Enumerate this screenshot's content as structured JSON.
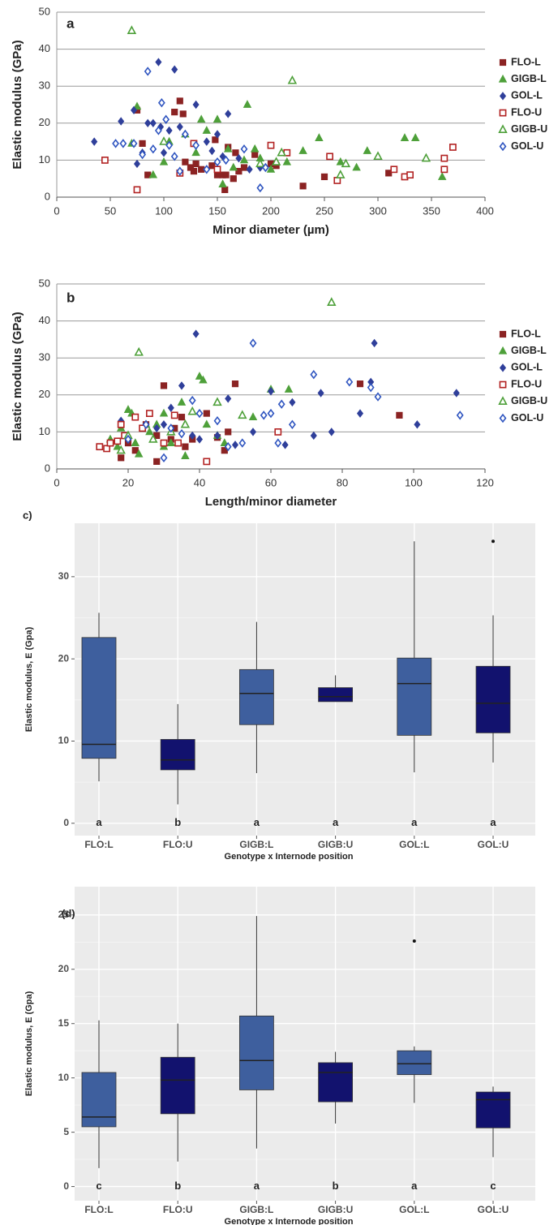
{
  "chart_data": [
    {
      "type": "scatter",
      "label": "a",
      "xlabel": "Minor diameter (µm)",
      "ylabel": "Elastic modulus (GPa)",
      "xlim": [
        0,
        400
      ],
      "xticks": [
        0,
        50,
        100,
        150,
        200,
        250,
        300,
        350,
        400
      ],
      "ylim": [
        0,
        50
      ],
      "yticks": [
        0,
        10,
        20,
        30,
        40,
        50
      ],
      "grid": true,
      "legend": "right",
      "series": [
        {
          "name": "FLO-L",
          "color": "#8b2323",
          "marker": "square",
          "filled": true,
          "x": [
            75,
            80,
            85,
            110,
            115,
            118,
            120,
            125,
            128,
            130,
            135,
            145,
            148,
            150,
            155,
            157,
            158,
            160,
            165,
            167,
            170,
            175,
            185,
            200,
            205,
            230,
            250,
            310
          ],
          "y": [
            23.5,
            14.5,
            6,
            23,
            26,
            22.5,
            9.5,
            8,
            7,
            9,
            7.5,
            8.5,
            15.5,
            6,
            6,
            2,
            6,
            13.5,
            5,
            12,
            7,
            8,
            11.5,
            9,
            8.5,
            3,
            5.5,
            6.5
          ]
        },
        {
          "name": "GIGB-L",
          "color": "#4ea03a",
          "marker": "triangle",
          "filled": true,
          "x": [
            70,
            75,
            90,
            100,
            105,
            120,
            130,
            135,
            140,
            150,
            155,
            160,
            165,
            175,
            178,
            185,
            190,
            200,
            210,
            215,
            230,
            245,
            265,
            280,
            290,
            300,
            325,
            335,
            360
          ],
          "y": [
            14.5,
            24.5,
            6,
            9.5,
            15,
            17,
            12,
            21,
            18,
            21,
            3.5,
            13,
            8,
            10,
            25,
            13,
            10.5,
            7.5,
            12,
            9.5,
            12.5,
            16,
            9.5,
            8,
            12.5,
            11,
            16,
            16,
            5.5
          ]
        },
        {
          "name": "GOL-L",
          "color": "#2f3f9a",
          "marker": "diamond",
          "filled": true,
          "x": [
            35,
            60,
            72,
            75,
            80,
            85,
            90,
            95,
            97,
            100,
            105,
            110,
            115,
            130,
            140,
            145,
            150,
            155,
            160,
            170,
            180,
            190
          ],
          "y": [
            15,
            20.5,
            23.5,
            9,
            12,
            20,
            20,
            36.5,
            19,
            12,
            18,
            34.5,
            19,
            25,
            15,
            12.5,
            17,
            11,
            22.5,
            10.5,
            7.5,
            8
          ]
        },
        {
          "name": "FLO-U",
          "color": "#b22222",
          "marker": "square",
          "filled": false,
          "x": [
            45,
            75,
            115,
            128,
            150,
            200,
            215,
            255,
            262,
            315,
            325,
            330,
            362,
            362,
            370
          ],
          "y": [
            10,
            2,
            6.5,
            14.5,
            7.5,
            14,
            12,
            11,
            4.5,
            7.5,
            5.5,
            6,
            10.5,
            7.5,
            13.5
          ]
        },
        {
          "name": "GIGB-U",
          "color": "#4ea03a",
          "marker": "triangle",
          "filled": false,
          "x": [
            70,
            100,
            205,
            210,
            220,
            265,
            270,
            300,
            345,
            190
          ],
          "y": [
            45,
            15,
            9.5,
            12,
            31.5,
            6,
            9,
            11,
            10.5,
            9
          ]
        },
        {
          "name": "GOL-U",
          "color": "#2f55c0",
          "marker": "diamond",
          "filled": false,
          "x": [
            55,
            62,
            72,
            80,
            85,
            90,
            95,
            98,
            102,
            105,
            110,
            115,
            120,
            130,
            140,
            150,
            158,
            175,
            190,
            195
          ],
          "y": [
            14.5,
            14.5,
            14.5,
            11.5,
            34,
            13,
            18,
            25.5,
            21,
            14,
            11,
            7,
            17,
            14,
            7.5,
            9.5,
            10,
            13,
            2.5,
            8
          ]
        }
      ]
    },
    {
      "type": "scatter",
      "label": "b",
      "xlabel": "Length/minor diameter",
      "ylabel": "Elastic modulus (GPa)",
      "xlim": [
        0,
        120
      ],
      "xticks": [
        0,
        20,
        40,
        60,
        80,
        100,
        120
      ],
      "ylim": [
        0,
        50
      ],
      "yticks": [
        0,
        10,
        20,
        30,
        40,
        50
      ],
      "grid": true,
      "legend": "right",
      "series": [
        {
          "name": "FLO-L",
          "color": "#8b2323",
          "marker": "square",
          "filled": true,
          "x": [
            18,
            20,
            22,
            25,
            28,
            30,
            32,
            35,
            36,
            38,
            42,
            45,
            47,
            48,
            50,
            85,
            96,
            28,
            33
          ],
          "y": [
            3,
            7,
            5,
            12,
            2,
            22.5,
            8,
            14,
            6,
            8,
            15,
            8.5,
            5,
            10,
            23,
            23,
            14.5,
            9,
            11
          ]
        },
        {
          "name": "GIGB-L",
          "color": "#4ea03a",
          "marker": "triangle",
          "filled": true,
          "x": [
            15,
            17,
            18,
            20,
            21,
            22,
            23,
            25,
            28,
            30,
            32,
            35,
            36,
            40,
            41,
            42,
            45,
            47,
            55,
            60,
            65,
            30,
            26
          ],
          "y": [
            8,
            6,
            11,
            16,
            15,
            7,
            4,
            12,
            12,
            15,
            7,
            18,
            3.5,
            25,
            24,
            12,
            9,
            7,
            14,
            21.5,
            21.5,
            6,
            10
          ]
        },
        {
          "name": "GOL-L",
          "color": "#2f3f9a",
          "marker": "diamond",
          "filled": true,
          "x": [
            18,
            28,
            30,
            32,
            35,
            38,
            39,
            40,
            45,
            48,
            50,
            55,
            60,
            64,
            66,
            72,
            74,
            77,
            85,
            88,
            89,
            101,
            112
          ],
          "y": [
            13,
            11,
            12,
            16.5,
            22.5,
            9,
            36.5,
            8,
            9,
            19,
            6.5,
            10,
            21,
            6.5,
            18,
            9,
            20.5,
            10,
            15,
            23.5,
            34,
            12,
            20.5
          ]
        },
        {
          "name": "FLO-U",
          "color": "#b22222",
          "marker": "square",
          "filled": false,
          "x": [
            12,
            14,
            15,
            17,
            18,
            19,
            22,
            24,
            26,
            30,
            33,
            34,
            42,
            62
          ],
          "y": [
            6,
            5.5,
            7,
            7.5,
            12,
            9,
            14,
            11,
            15,
            7,
            14.5,
            7,
            2,
            10
          ]
        },
        {
          "name": "GIGB-U",
          "color": "#4ea03a",
          "marker": "triangle",
          "filled": false,
          "x": [
            18,
            20,
            23,
            27,
            32,
            38,
            45,
            52,
            77,
            36
          ],
          "y": [
            5,
            9,
            31.5,
            8,
            10,
            15.5,
            18,
            14.5,
            45,
            12
          ]
        },
        {
          "name": "GOL-U",
          "color": "#2f55c0",
          "marker": "diamond",
          "filled": false,
          "x": [
            20,
            25,
            30,
            32,
            35,
            38,
            40,
            45,
            48,
            52,
            55,
            58,
            60,
            62,
            63,
            66,
            72,
            82,
            88,
            90,
            113
          ],
          "y": [
            8,
            12,
            3,
            11,
            9.5,
            18.5,
            15,
            13,
            6,
            7,
            34,
            14.5,
            15,
            7,
            17.5,
            12,
            25.5,
            23.5,
            22,
            19.5,
            14.5
          ]
        }
      ]
    },
    {
      "type": "box",
      "label": "c)",
      "xlabel": "Genotype x Internode position",
      "ylabel": "Elastic modulus, E (Gpa)",
      "ylim": [
        -1.5,
        36.5
      ],
      "yticks": [
        0,
        10,
        20,
        30
      ],
      "grid": true,
      "categories": [
        "FLO:L",
        "FLO:U",
        "GIGB:L",
        "GIGB:U",
        "GOL:L",
        "GOL:U"
      ],
      "colors": [
        "#3e5f9e",
        "#12126e",
        "#3e5f9e",
        "#12126e",
        "#3e5f9e",
        "#12126e"
      ],
      "letters": [
        "a",
        "b",
        "a",
        "a",
        "a",
        "a"
      ],
      "boxes": [
        {
          "whisker_low": 5.1,
          "q1": 7.9,
          "median": 9.6,
          "q3": 22.6,
          "whisker_high": 25.6,
          "outliers": []
        },
        {
          "whisker_low": 2.3,
          "q1": 6.5,
          "median": 7.7,
          "q3": 10.2,
          "whisker_high": 14.5,
          "outliers": []
        },
        {
          "whisker_low": 6.1,
          "q1": 12.0,
          "median": 15.8,
          "q3": 18.7,
          "whisker_high": 24.5,
          "outliers": []
        },
        {
          "whisker_low": 14.8,
          "q1": 14.8,
          "median": 15.4,
          "q3": 16.5,
          "whisker_high": 18.0,
          "outliers": []
        },
        {
          "whisker_low": 6.2,
          "q1": 10.7,
          "median": 17.0,
          "q3": 20.1,
          "whisker_high": 34.3,
          "outliers": []
        },
        {
          "whisker_low": 7.4,
          "q1": 11.0,
          "median": 14.6,
          "q3": 19.1,
          "whisker_high": 25.3,
          "outliers": [
            34.3
          ]
        }
      ]
    },
    {
      "type": "box",
      "label": "(d)",
      "xlabel": "Genotype x Internode position",
      "ylabel": "Elastic modulus, E (Gpa)",
      "ylim": [
        -1.3,
        27.6
      ],
      "yticks": [
        0,
        5,
        10,
        15,
        20,
        25
      ],
      "grid": true,
      "categories": [
        "FLO:L",
        "FLO:U",
        "GIGB:L",
        "GIGB:U",
        "GOL:L",
        "GOL:U"
      ],
      "colors": [
        "#3e5f9e",
        "#12126e",
        "#3e5f9e",
        "#12126e",
        "#3e5f9e",
        "#12126e"
      ],
      "letters": [
        "c",
        "b",
        "a",
        "b",
        "a",
        "c"
      ],
      "boxes": [
        {
          "whisker_low": 1.7,
          "q1": 5.5,
          "median": 6.4,
          "q3": 10.5,
          "whisker_high": 15.3,
          "outliers": []
        },
        {
          "whisker_low": 2.3,
          "q1": 6.7,
          "median": 9.8,
          "q3": 11.9,
          "whisker_high": 15.0,
          "outliers": []
        },
        {
          "whisker_low": 3.5,
          "q1": 8.9,
          "median": 11.6,
          "q3": 15.7,
          "whisker_high": 24.9,
          "outliers": []
        },
        {
          "whisker_low": 5.8,
          "q1": 7.8,
          "median": 10.5,
          "q3": 11.4,
          "whisker_high": 12.4,
          "outliers": []
        },
        {
          "whisker_low": 7.7,
          "q1": 10.3,
          "median": 11.3,
          "q3": 12.5,
          "whisker_high": 12.9,
          "outliers": [
            22.6
          ]
        },
        {
          "whisker_low": 2.7,
          "q1": 5.4,
          "median": 8.0,
          "q3": 8.7,
          "whisker_high": 9.2,
          "outliers": []
        }
      ]
    }
  ]
}
